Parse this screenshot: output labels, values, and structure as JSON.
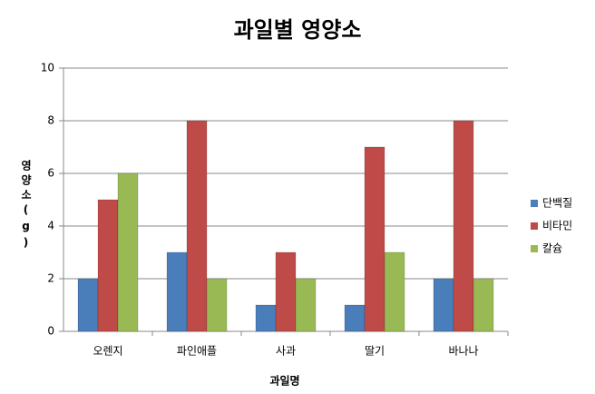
{
  "chart_data": {
    "type": "bar",
    "title": "과일별 영양소",
    "x_label": "과일명",
    "y_label": "영양소(g)",
    "categories": [
      "오렌지",
      "파인애플",
      "사과",
      "딸기",
      "바나나"
    ],
    "series": [
      {
        "name": "단백질",
        "color": "#4a7ebb",
        "values": [
          2,
          3,
          1,
          1,
          2
        ]
      },
      {
        "name": "비타민",
        "color": "#be4b48",
        "values": [
          5,
          8,
          3,
          7,
          8
        ]
      },
      {
        "name": "칼슘",
        "color": "#98b954",
        "values": [
          6,
          2,
          2,
          3,
          2
        ]
      }
    ],
    "ylim": [
      0,
      10
    ],
    "yticks": [
      0,
      2,
      4,
      6,
      8,
      10
    ],
    "grid": true,
    "legend": "right"
  }
}
